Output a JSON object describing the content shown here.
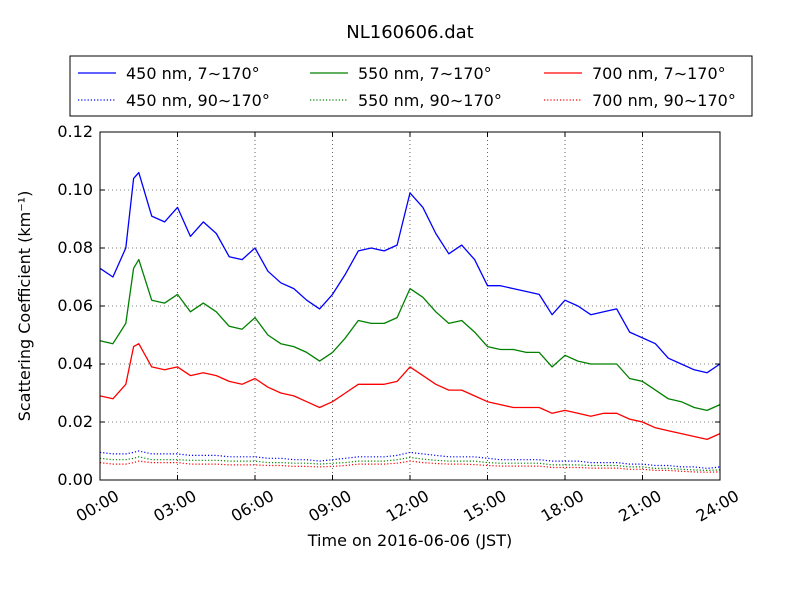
{
  "chart_data": {
    "type": "line",
    "title": "NL160606.dat",
    "xlabel": "Time on 2016-06-06 (JST)",
    "ylabel": "Scattering Coefficient (km⁻¹)",
    "x_unit": "hour of day",
    "xlim": [
      0,
      24
    ],
    "ylim": [
      0,
      0.12
    ],
    "x_ticks": [
      "00:00",
      "03:00",
      "06:00",
      "09:00",
      "12:00",
      "15:00",
      "18:00",
      "21:00",
      "24:00"
    ],
    "y_ticks": [
      "0.00",
      "0.02",
      "0.04",
      "0.06",
      "0.08",
      "0.10",
      "0.12"
    ],
    "grid": true,
    "legend_position": "top, above plot",
    "x": [
      0,
      0.5,
      1,
      1.3,
      1.5,
      2,
      2.5,
      3,
      3.5,
      4,
      4.5,
      5,
      5.5,
      6,
      6.5,
      7,
      7.5,
      8,
      8.5,
      9,
      9.5,
      10,
      10.5,
      11,
      11.5,
      12,
      12.5,
      13,
      13.5,
      14,
      14.5,
      15,
      15.5,
      16,
      16.5,
      17,
      17.5,
      18,
      18.5,
      19,
      19.5,
      20,
      20.5,
      21,
      21.5,
      22,
      22.5,
      23,
      23.5,
      24
    ],
    "series": [
      {
        "name": "450 nm, 7∼170°",
        "color": "#0000ff",
        "style": "solid",
        "values": [
          0.073,
          0.07,
          0.08,
          0.104,
          0.106,
          0.091,
          0.089,
          0.094,
          0.084,
          0.089,
          0.085,
          0.077,
          0.076,
          0.08,
          0.072,
          0.068,
          0.066,
          0.062,
          0.059,
          0.064,
          0.071,
          0.079,
          0.08,
          0.079,
          0.081,
          0.099,
          0.094,
          0.085,
          0.078,
          0.081,
          0.076,
          0.067,
          0.067,
          0.066,
          0.065,
          0.064,
          0.057,
          0.062,
          0.06,
          0.057,
          0.058,
          0.059,
          0.051,
          0.049,
          0.047,
          0.042,
          0.04,
          0.038,
          0.037,
          0.04
        ]
      },
      {
        "name": "550 nm, 7∼170°",
        "color": "#008000",
        "style": "solid",
        "values": [
          0.048,
          0.047,
          0.054,
          0.073,
          0.076,
          0.062,
          0.061,
          0.064,
          0.058,
          0.061,
          0.058,
          0.053,
          0.052,
          0.056,
          0.05,
          0.047,
          0.046,
          0.044,
          0.041,
          0.044,
          0.049,
          0.055,
          0.054,
          0.054,
          0.056,
          0.066,
          0.063,
          0.058,
          0.054,
          0.055,
          0.051,
          0.046,
          0.045,
          0.045,
          0.044,
          0.044,
          0.039,
          0.043,
          0.041,
          0.04,
          0.04,
          0.04,
          0.035,
          0.034,
          0.031,
          0.028,
          0.027,
          0.025,
          0.024,
          0.026
        ]
      },
      {
        "name": "700 nm, 7∼170°",
        "color": "#ff0000",
        "style": "solid",
        "values": [
          0.029,
          0.028,
          0.033,
          0.046,
          0.047,
          0.039,
          0.038,
          0.039,
          0.036,
          0.037,
          0.036,
          0.034,
          0.033,
          0.035,
          0.032,
          0.03,
          0.029,
          0.027,
          0.025,
          0.027,
          0.03,
          0.033,
          0.033,
          0.033,
          0.034,
          0.039,
          0.036,
          0.033,
          0.031,
          0.031,
          0.029,
          0.027,
          0.026,
          0.025,
          0.025,
          0.025,
          0.023,
          0.024,
          0.023,
          0.022,
          0.023,
          0.023,
          0.021,
          0.02,
          0.018,
          0.017,
          0.016,
          0.015,
          0.014,
          0.016
        ]
      },
      {
        "name": "450 nm, 90∼170°",
        "color": "#0000ff",
        "style": "dotted",
        "values": [
          0.0095,
          0.009,
          0.009,
          0.0095,
          0.01,
          0.009,
          0.009,
          0.009,
          0.0085,
          0.0085,
          0.0085,
          0.008,
          0.008,
          0.008,
          0.0075,
          0.0075,
          0.007,
          0.007,
          0.0065,
          0.007,
          0.0075,
          0.008,
          0.008,
          0.008,
          0.0085,
          0.0095,
          0.009,
          0.0085,
          0.008,
          0.008,
          0.008,
          0.0075,
          0.007,
          0.007,
          0.007,
          0.007,
          0.0065,
          0.0065,
          0.0065,
          0.006,
          0.006,
          0.006,
          0.0055,
          0.0055,
          0.005,
          0.005,
          0.0045,
          0.0045,
          0.004,
          0.0045
        ]
      },
      {
        "name": "550 nm, 90∼170°",
        "color": "#008000",
        "style": "dotted",
        "values": [
          0.0075,
          0.007,
          0.007,
          0.0075,
          0.008,
          0.007,
          0.007,
          0.007,
          0.0068,
          0.0068,
          0.0068,
          0.0065,
          0.0065,
          0.0065,
          0.006,
          0.006,
          0.0058,
          0.0058,
          0.0055,
          0.0058,
          0.006,
          0.0065,
          0.0065,
          0.0065,
          0.007,
          0.0078,
          0.0072,
          0.0068,
          0.0065,
          0.0065,
          0.0065,
          0.006,
          0.0058,
          0.0058,
          0.0058,
          0.0058,
          0.0052,
          0.0052,
          0.0052,
          0.005,
          0.005,
          0.005,
          0.0045,
          0.0045,
          0.004,
          0.004,
          0.0037,
          0.0035,
          0.0033,
          0.0035
        ]
      },
      {
        "name": "700 nm, 90∼170°",
        "color": "#ff0000",
        "style": "dotted",
        "values": [
          0.006,
          0.0055,
          0.0055,
          0.006,
          0.0065,
          0.006,
          0.006,
          0.006,
          0.0055,
          0.0055,
          0.0055,
          0.0052,
          0.0052,
          0.0052,
          0.005,
          0.005,
          0.0047,
          0.0047,
          0.0045,
          0.0047,
          0.005,
          0.0055,
          0.0055,
          0.0055,
          0.0058,
          0.0065,
          0.006,
          0.0057,
          0.0055,
          0.0055,
          0.0053,
          0.005,
          0.0048,
          0.0048,
          0.0048,
          0.0048,
          0.0043,
          0.0043,
          0.0043,
          0.0041,
          0.0041,
          0.0041,
          0.0037,
          0.0037,
          0.0033,
          0.0033,
          0.003,
          0.0028,
          0.0027,
          0.0028
        ]
      }
    ]
  }
}
